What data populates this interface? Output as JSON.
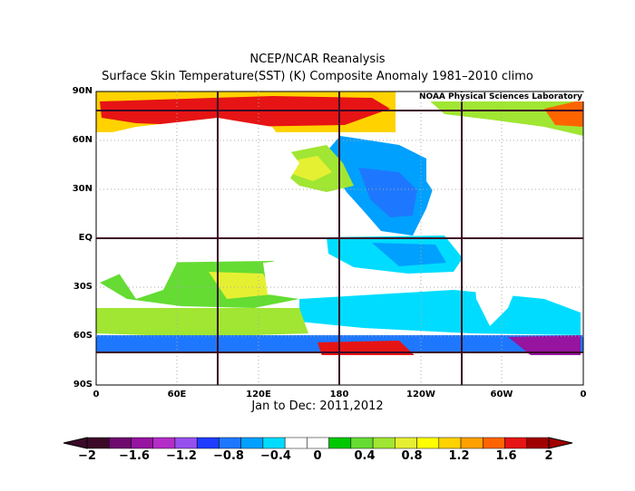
{
  "title_line1": "NCEP/NCAR Reanalysis",
  "title_line2": "Surface Skin Temperature(SST) (K) Composite Anomaly 1981–2010 climo",
  "credit": "NOAA Physical Sciences Laboratory",
  "footer": "Jan to Dec: 2011,2012",
  "lat_labels": [
    "90N",
    "60N",
    "30N",
    "EQ",
    "30S",
    "60S",
    "90S"
  ],
  "lon_labels": [
    "0",
    "60E",
    "120E",
    "180",
    "120W",
    "60W",
    "0"
  ],
  "colorbar": {
    "labels": [
      "−2",
      "−1.6",
      "−1.2",
      "−0.8",
      "−0.4",
      "0",
      "0.4",
      "0.8",
      "1.2",
      "1.6",
      "2"
    ],
    "colors": [
      "#3c0a28",
      "#6e0a6e",
      "#9614a0",
      "#b42dc8",
      "#9650f0",
      "#1e3cff",
      "#1e78ff",
      "#00a0ff",
      "#00dcff",
      "#ffffff",
      "#ffffff",
      "#00c800",
      "#64dc32",
      "#a0e632",
      "#e6f032",
      "#ffff00",
      "#ffd200",
      "#ffa000",
      "#ff6400",
      "#e61414",
      "#a00000"
    ]
  }
}
